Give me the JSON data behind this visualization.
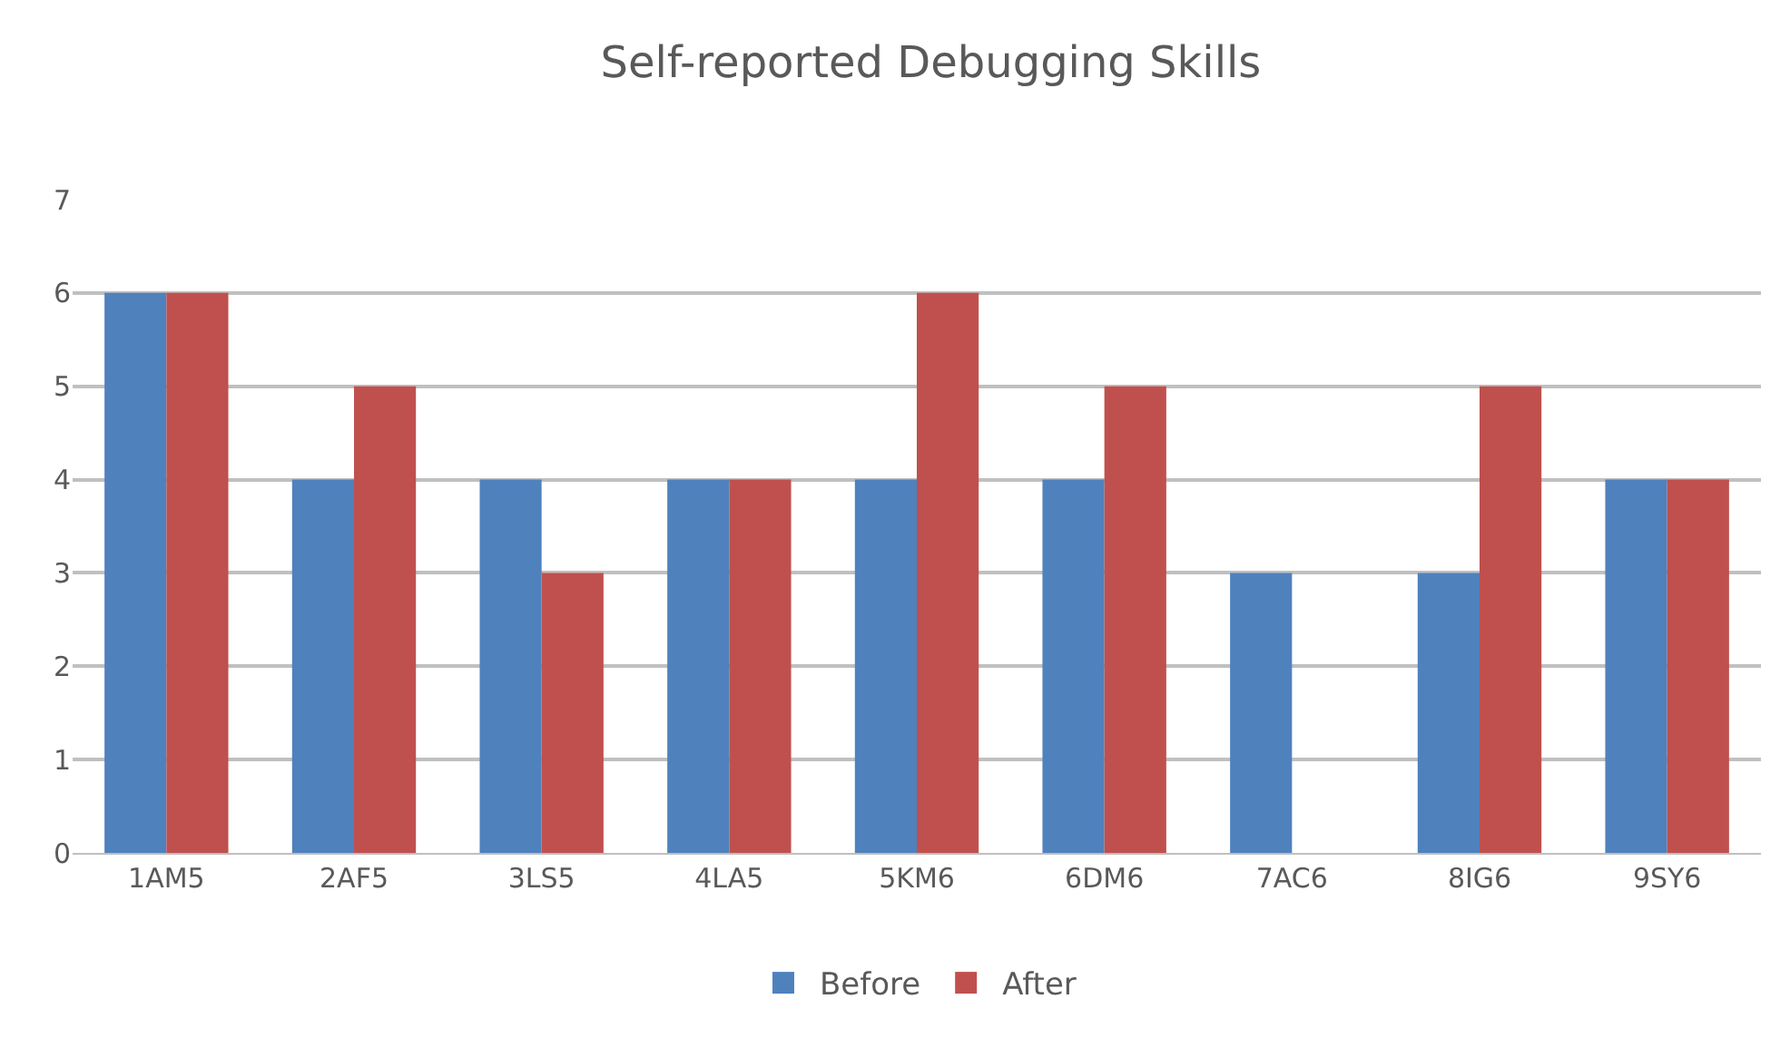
{
  "chart_data": {
    "type": "bar",
    "title": "Self-reported Debugging Skills",
    "categories": [
      "1AM5",
      "2AF5",
      "3LS5",
      "4LA5",
      "5KM6",
      "6DM6",
      "7AC6",
      "8IG6",
      "9SY6"
    ],
    "series": [
      {
        "name": "Before",
        "color": "#4f81bd",
        "values": [
          6,
          4,
          4,
          4,
          4,
          4,
          3,
          3,
          4
        ]
      },
      {
        "name": "After",
        "color": "#c0504d",
        "values": [
          6,
          5,
          3,
          4,
          6,
          5,
          null,
          5,
          4
        ]
      }
    ],
    "ylim": [
      0,
      7
    ],
    "yticks": [
      0,
      1,
      2,
      3,
      4,
      5,
      6,
      7
    ],
    "grid": "y",
    "legend": "bottom"
  }
}
